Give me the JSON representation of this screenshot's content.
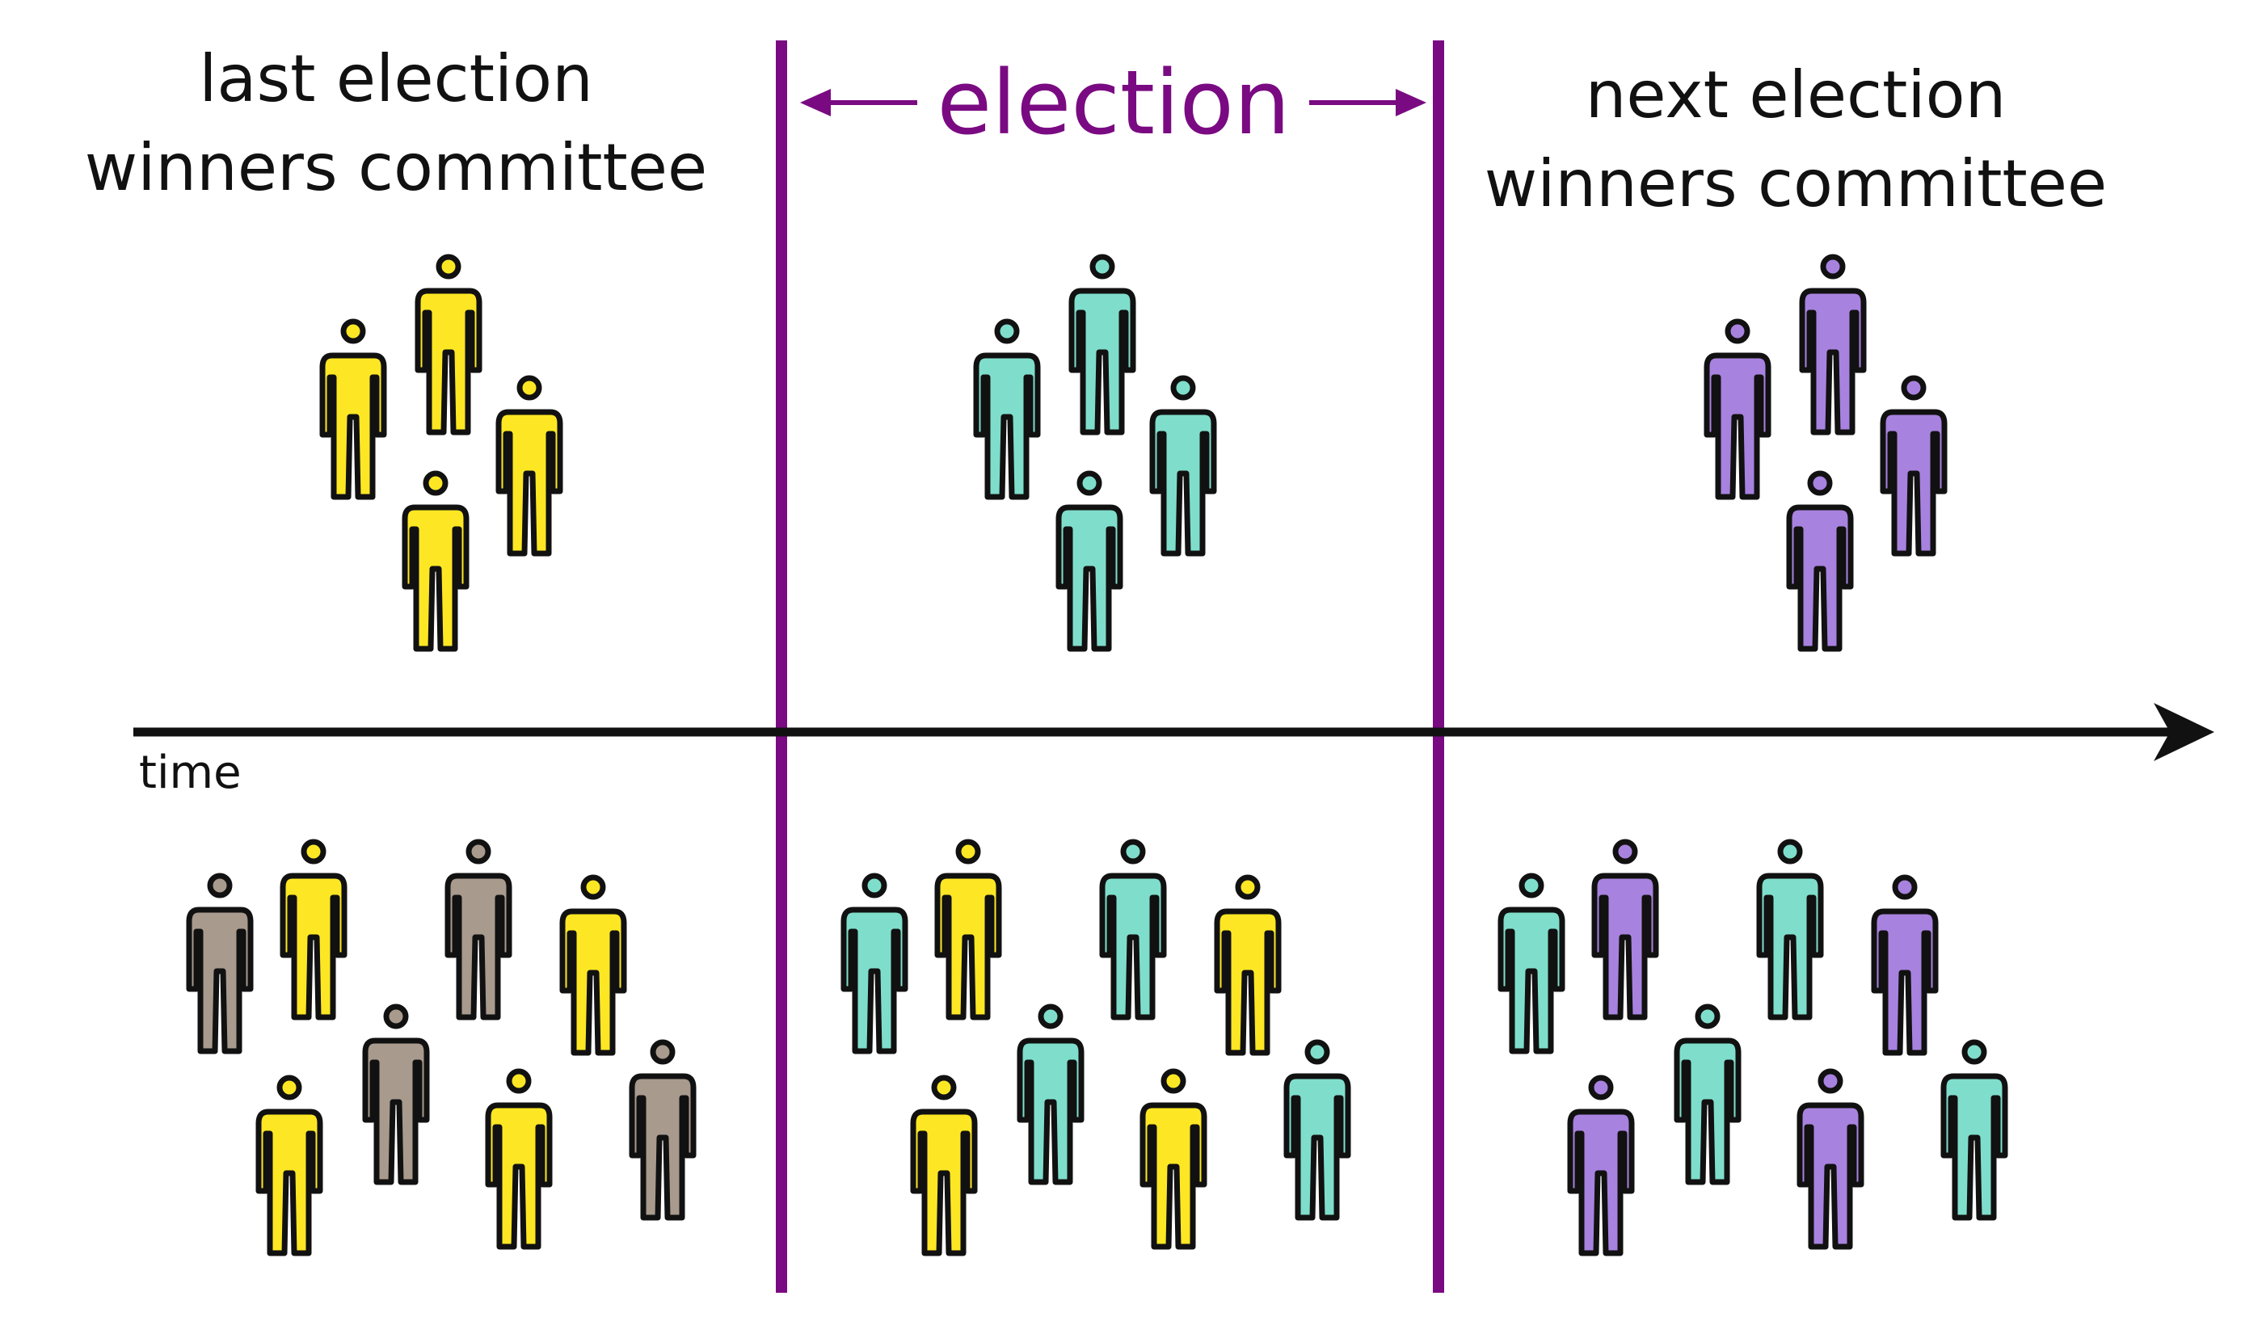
{
  "labels": {
    "left_title_line1": "last election",
    "left_title_line2": "winners committee",
    "middle_title": "election",
    "right_title_line1": "next election",
    "right_title_line2": "winners committee",
    "axis_label": "time"
  },
  "colors": {
    "yellow": "#fde724",
    "teal": "#7fdecb",
    "purple": "#a882df",
    "gray": "#a89a8d",
    "divider": "#7a0a82",
    "ink": "#111111"
  },
  "committees": {
    "last": [
      "yellow",
      "yellow",
      "yellow",
      "yellow"
    ],
    "current": [
      "teal",
      "teal",
      "teal",
      "teal"
    ],
    "next": [
      "purple",
      "purple",
      "purple",
      "purple"
    ]
  },
  "crowds": {
    "past": [
      "gray",
      "yellow",
      "gray",
      "yellow",
      "yellow",
      "gray",
      "yellow",
      "gray"
    ],
    "during": [
      "teal",
      "yellow",
      "teal",
      "yellow",
      "yellow",
      "teal",
      "yellow",
      "teal"
    ],
    "future": [
      "teal",
      "purple",
      "teal",
      "purple",
      "purple",
      "teal",
      "purple",
      "teal"
    ]
  }
}
